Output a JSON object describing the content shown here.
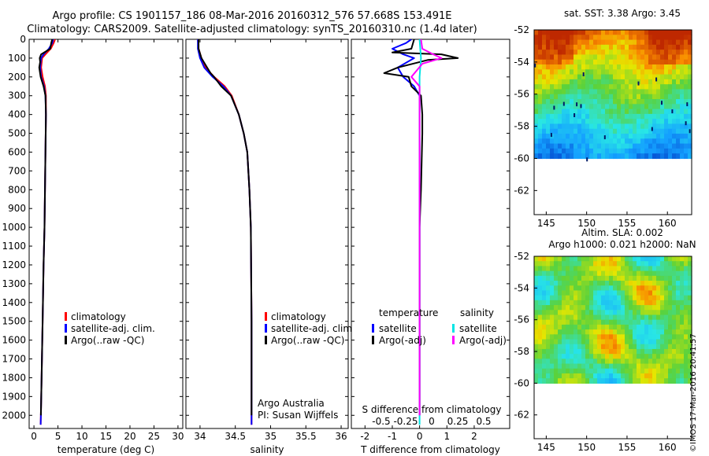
{
  "header": {
    "line1": "Argo profile: CS 1901157_186 08-Mar-2016 20160312_576 57.668S 153.491E",
    "line2": "Climatology: CARS2009. Satellite-adjusted climatology: synTS_20160310.nc (1.4d later)"
  },
  "stamp": "©IMOS 17-Mar-2016 20:41:57",
  "colors": {
    "climatology": "#ff0000",
    "satellite": "#0000ff",
    "argo": "#000000",
    "sal_satellite": "#00e5e5",
    "sal_argo": "#ff00ff"
  },
  "chart_data": [
    {
      "type": "line",
      "name": "temperature-profile",
      "xlabel": "temperature (deg C)",
      "ylabel": "",
      "xlim": [
        -1,
        31
      ],
      "ylim": [
        2070,
        0
      ],
      "xticks": [
        0,
        5,
        10,
        15,
        20,
        25,
        30
      ],
      "yticks": [
        0,
        100,
        200,
        300,
        400,
        500,
        600,
        700,
        800,
        900,
        1000,
        1100,
        1200,
        1300,
        1400,
        1500,
        1600,
        1700,
        1800,
        1900,
        2000
      ],
      "series": [
        {
          "name": "climatology",
          "color": "#ff0000",
          "points": [
            [
              4.4,
              0
            ],
            [
              4.1,
              20
            ],
            [
              3.5,
              50
            ],
            [
              2.4,
              80
            ],
            [
              1.7,
              100
            ],
            [
              1.5,
              150
            ],
            [
              1.8,
              200
            ],
            [
              2.3,
              250
            ],
            [
              2.5,
              300
            ],
            [
              2.5,
              400
            ],
            [
              2.4,
              600
            ],
            [
              2.3,
              800
            ],
            [
              2.2,
              1000
            ],
            [
              2.0,
              1200
            ],
            [
              1.8,
              1500
            ],
            [
              1.6,
              1800
            ],
            [
              1.45,
              2000
            ],
            [
              1.4,
              2050
            ]
          ]
        },
        {
          "name": "satellite-adj. clim.",
          "color": "#0000ff",
          "points": [
            [
              4.0,
              0
            ],
            [
              3.8,
              20
            ],
            [
              3.1,
              50
            ],
            [
              2.0,
              80
            ],
            [
              1.5,
              100
            ],
            [
              1.3,
              150
            ],
            [
              1.5,
              200
            ],
            [
              2.1,
              250
            ],
            [
              2.4,
              300
            ],
            [
              2.5,
              400
            ],
            [
              2.4,
              600
            ],
            [
              2.3,
              800
            ],
            [
              2.2,
              1000
            ],
            [
              2.0,
              1200
            ],
            [
              1.8,
              1500
            ],
            [
              1.6,
              1800
            ],
            [
              1.45,
              2000
            ],
            [
              1.4,
              2050
            ]
          ]
        },
        {
          "name": "Argo(..raw -QC)",
          "color": "#000000",
          "points": [
            [
              3.8,
              0
            ],
            [
              3.6,
              20
            ],
            [
              3.4,
              50
            ],
            [
              1.5,
              80
            ],
            [
              1.2,
              100
            ],
            [
              1.3,
              120
            ],
            [
              1.1,
              150
            ],
            [
              1.4,
              200
            ],
            [
              2.0,
              250
            ],
            [
              2.4,
              300
            ],
            [
              2.5,
              400
            ],
            [
              2.4,
              600
            ],
            [
              2.3,
              800
            ],
            [
              2.2,
              1000
            ],
            [
              2.0,
              1200
            ],
            [
              1.8,
              1500
            ],
            [
              1.6,
              1800
            ],
            [
              1.45,
              2000
            ]
          ]
        }
      ],
      "legend": [
        "climatology",
        "satellite-adj. clim.",
        "Argo(..raw -QC)"
      ]
    },
    {
      "type": "line",
      "name": "salinity-profile",
      "xlabel": "salinity",
      "ylabel": "",
      "xlim": [
        33.8,
        36.1
      ],
      "ylim": [
        2070,
        0
      ],
      "xticks": [
        34,
        34.5,
        35,
        35.5,
        36
      ],
      "series": [
        {
          "name": "climatology",
          "color": "#ff0000",
          "points": [
            [
              33.97,
              0
            ],
            [
              33.98,
              50
            ],
            [
              34.02,
              100
            ],
            [
              34.08,
              150
            ],
            [
              34.2,
              200
            ],
            [
              34.35,
              250
            ],
            [
              34.45,
              300
            ],
            [
              34.55,
              400
            ],
            [
              34.62,
              500
            ],
            [
              34.67,
              600
            ],
            [
              34.7,
              800
            ],
            [
              34.72,
              1000
            ],
            [
              34.73,
              1500
            ],
            [
              34.73,
              2050
            ]
          ]
        },
        {
          "name": "satellite-adj. clim.",
          "color": "#0000ff",
          "points": [
            [
              33.97,
              0
            ],
            [
              33.97,
              50
            ],
            [
              34.0,
              100
            ],
            [
              34.06,
              150
            ],
            [
              34.18,
              200
            ],
            [
              34.33,
              250
            ],
            [
              34.44,
              300
            ],
            [
              34.55,
              400
            ],
            [
              34.62,
              500
            ],
            [
              34.67,
              600
            ],
            [
              34.7,
              800
            ],
            [
              34.72,
              1000
            ],
            [
              34.73,
              1500
            ],
            [
              34.73,
              2050
            ]
          ]
        },
        {
          "name": "Argo(..raw -QC)",
          "color": "#000000",
          "points": [
            [
              33.98,
              0
            ],
            [
              33.98,
              50
            ],
            [
              34.02,
              100
            ],
            [
              34.1,
              150
            ],
            [
              34.15,
              180
            ],
            [
              34.2,
              200
            ],
            [
              34.3,
              250
            ],
            [
              34.44,
              300
            ],
            [
              34.55,
              400
            ],
            [
              34.62,
              500
            ],
            [
              34.67,
              600
            ],
            [
              34.7,
              800
            ],
            [
              34.72,
              1000
            ],
            [
              34.73,
              1500
            ],
            [
              34.73,
              2000
            ]
          ]
        }
      ],
      "legend": [
        "climatology",
        "satellite-adj. clim.",
        "Argo(..raw -QC)"
      ],
      "annotations": [
        "Argo Australia",
        "PI: Susan Wijffels"
      ]
    },
    {
      "type": "line",
      "name": "difference-profile",
      "xlabel": "T difference from climatology",
      "top_label": "S difference from climatology",
      "xlim": [
        -2.5,
        3.3
      ],
      "ylim": [
        2070,
        0
      ],
      "xticks": [
        -2,
        -1,
        0,
        1,
        2
      ],
      "top_xticks": [
        "-0.5",
        "-0.25",
        "0",
        "0.25",
        "0.5"
      ],
      "series": [
        {
          "name": "temperature satellite",
          "color": "#0000ff",
          "points": [
            [
              -0.3,
              0
            ],
            [
              -0.5,
              20
            ],
            [
              -1.0,
              50
            ],
            [
              -0.6,
              80
            ],
            [
              -0.2,
              100
            ],
            [
              -0.8,
              150
            ],
            [
              -0.6,
              200
            ],
            [
              -0.2,
              250
            ],
            [
              0,
              300
            ],
            [
              0,
              500
            ],
            [
              0,
              1000
            ],
            [
              0,
              2000
            ]
          ]
        },
        {
          "name": "temperature Argo(-adj)",
          "color": "#000000",
          "points": [
            [
              -0.2,
              0
            ],
            [
              -0.3,
              50
            ],
            [
              -1.0,
              70
            ],
            [
              0.8,
              80
            ],
            [
              1.4,
              100
            ],
            [
              0.3,
              110
            ],
            [
              -0.8,
              150
            ],
            [
              -1.3,
              180
            ],
            [
              -0.4,
              200
            ],
            [
              -0.3,
              250
            ],
            [
              0.05,
              300
            ],
            [
              0.1,
              400
            ],
            [
              0.1,
              500
            ],
            [
              0.05,
              800
            ],
            [
              0,
              1000
            ],
            [
              0,
              1500
            ],
            [
              0,
              2000
            ]
          ]
        },
        {
          "name": "salinity satellite",
          "color": "#00e5e5",
          "points": [
            [
              0,
              0
            ],
            [
              0.05,
              100
            ],
            [
              0,
              200
            ],
            [
              0,
              500
            ],
            [
              0,
              1000
            ],
            [
              0,
              2050
            ]
          ]
        },
        {
          "name": "salinity Argo(-adj)",
          "color": "#ff00ff",
          "points": [
            [
              0.05,
              0
            ],
            [
              0.1,
              50
            ],
            [
              0.5,
              80
            ],
            [
              0.8,
              100
            ],
            [
              0.1,
              130
            ],
            [
              -0.3,
              200
            ],
            [
              0,
              250
            ],
            [
              0,
              2000
            ]
          ]
        }
      ],
      "legend_headers": [
        "temperature",
        "salinity"
      ],
      "legend_items": [
        "satellite",
        "Argo(-adj)"
      ]
    },
    {
      "type": "heatmap",
      "name": "sst-map",
      "title": "sat. SST: 3.38 Argo: 3.45",
      "xlim": [
        143.5,
        163
      ],
      "ylim": [
        -63.5,
        -52
      ],
      "xticks": [
        145,
        150,
        155,
        160
      ],
      "yticks": [
        -52,
        -54,
        -56,
        -58,
        -60,
        -62
      ]
    },
    {
      "type": "heatmap",
      "name": "sla-map",
      "title": "Altim. SLA: 0.002",
      "subtitle": "Argo h1000: 0.021 h2000: NaN",
      "xlim": [
        143.5,
        163
      ],
      "ylim": [
        -63.5,
        -52
      ],
      "xticks": [
        145,
        150,
        155,
        160
      ],
      "yticks": [
        -52,
        -54,
        -56,
        -58,
        -60,
        -62
      ]
    }
  ]
}
